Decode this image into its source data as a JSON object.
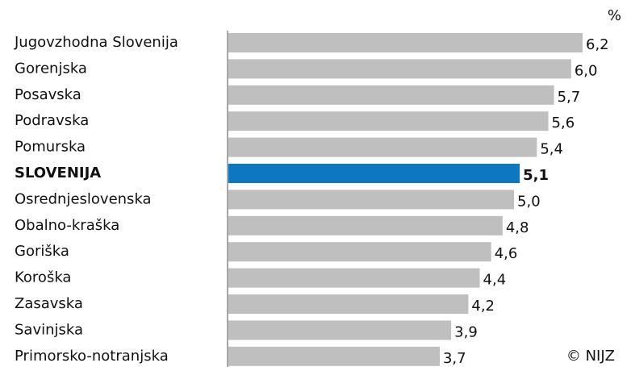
{
  "chart_data": {
    "type": "hbar",
    "unit": "%",
    "source": "© NIJZ",
    "categories": [
      "Jugovzhodna Slovenija",
      "Gorenjska",
      "Posavska",
      "Podravska",
      "Pomurska",
      "SLOVENIJA",
      "Osrednjeslovenska",
      "Obalno-kraška",
      "Goriška",
      "Koroška",
      "Zasavska",
      "Savinjska",
      "Primorsko-notranjska"
    ],
    "values": [
      6.2,
      6.0,
      5.7,
      5.6,
      5.4,
      5.1,
      5.0,
      4.8,
      4.6,
      4.4,
      4.2,
      3.9,
      3.7
    ],
    "value_labels": [
      "6,2",
      "6,0",
      "5,7",
      "5,6",
      "5,4",
      "5,1",
      "5,0",
      "4,8",
      "4,6",
      "4,4",
      "4,2",
      "3,9",
      "3,7"
    ],
    "color": "#bfbfbf",
    "colors": [
      "#bfbfbf",
      "#bfbfbf",
      "#bfbfbf",
      "#bfbfbf",
      "#bfbfbf",
      "#0b78c1",
      "#bfbfbf",
      "#bfbfbf",
      "#bfbfbf",
      "#bfbfbf",
      "#bfbfbf",
      "#bfbfbf",
      "#bfbfbf"
    ]
  }
}
